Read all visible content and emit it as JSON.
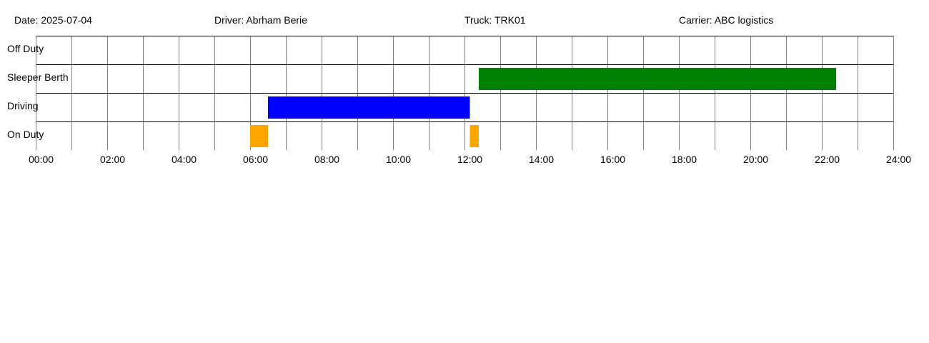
{
  "header": {
    "date": "Date: 2025-07-04",
    "driver": "Driver: Abrham Berie",
    "truck": "Truck: TRK01",
    "carrier": "Carrier: ABC logistics"
  },
  "chart_data": {
    "type": "gantt",
    "title": "",
    "xlabel": "",
    "ylabel": "",
    "xlim": [
      0,
      24
    ],
    "x_unit": "hours",
    "grid": true,
    "rows": [
      "Off Duty",
      "Sleeper Berth",
      "Driving",
      "On Duty"
    ],
    "tick_labels": [
      "00:00",
      "02:00",
      "04:00",
      "06:00",
      "08:00",
      "10:00",
      "12:00",
      "14:00",
      "16:00",
      "18:00",
      "20:00",
      "22:00",
      "24:00"
    ],
    "tick_values": [
      0,
      2,
      4,
      6,
      8,
      10,
      12,
      14,
      16,
      18,
      20,
      22,
      24
    ],
    "colors": {
      "On Duty": "#ffa500",
      "Driving": "#0000ff",
      "Sleeper Berth": "#008000",
      "Off Duty": "#808080"
    },
    "segments": [
      {
        "status": "On Duty",
        "start": 6.0,
        "end": 6.5
      },
      {
        "status": "Driving",
        "start": 6.5,
        "end": 12.15
      },
      {
        "status": "On Duty",
        "start": 12.15,
        "end": 12.4
      },
      {
        "status": "Sleeper Berth",
        "start": 12.4,
        "end": 22.4
      }
    ]
  }
}
